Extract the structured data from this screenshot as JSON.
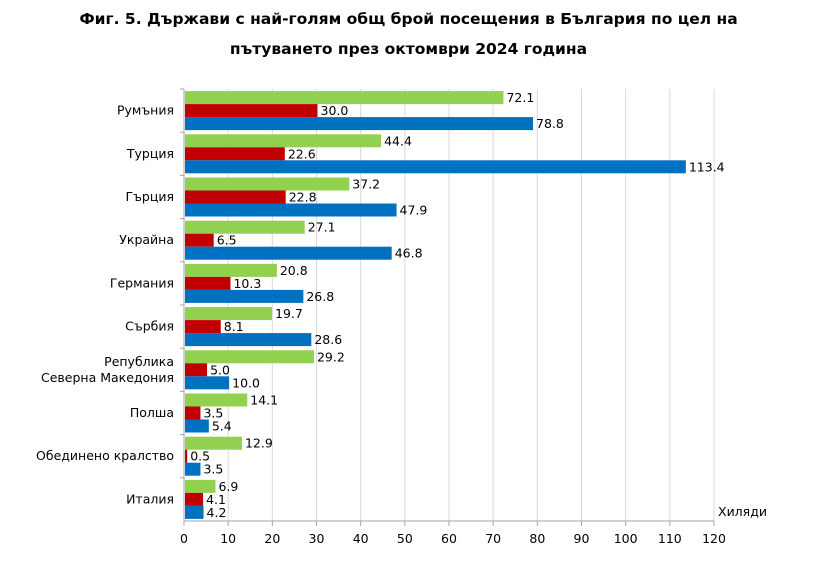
{
  "chart_data": {
    "type": "bar",
    "orientation": "horizontal",
    "title_line1": "Фиг. 5. Държави с най-голям общ брой посещения в България по цел на",
    "title_line2": "пътуването през октомври 2024 година",
    "xlabel": "Хиляди",
    "ylabel": "",
    "xlim": [
      0,
      120
    ],
    "xticks": [
      "0",
      "10",
      "20",
      "30",
      "40",
      "50",
      "60",
      "70",
      "80",
      "90",
      "100",
      "110",
      "120"
    ],
    "grid": true,
    "legend": "none",
    "categories": [
      "Румъния",
      "Турция",
      "Гърция",
      "Украйна",
      "Германия",
      "Сърбия",
      "Република Северна Македония",
      "Полша",
      "Обединено кралство",
      "Италия"
    ],
    "category_lines": [
      [
        "Румъния"
      ],
      [
        "Турция"
      ],
      [
        "Гърция"
      ],
      [
        "Украйна"
      ],
      [
        "Германия"
      ],
      [
        "Сърбия"
      ],
      [
        "Република",
        "Северна Македония"
      ],
      [
        "Полша"
      ],
      [
        "Обединено кралство"
      ],
      [
        "Италия"
      ]
    ],
    "series": [
      {
        "name": "series-green",
        "color": "#92d050",
        "values": [
          72.1,
          44.4,
          37.2,
          27.1,
          20.8,
          19.7,
          29.2,
          14.1,
          12.9,
          6.9
        ],
        "labels": [
          "72.1",
          "44.4",
          "37.2",
          "27.1",
          "20.8",
          "19.7",
          "29.2",
          "14.1",
          "12.9",
          "6.9"
        ]
      },
      {
        "name": "series-red",
        "color": "#c00000",
        "values": [
          30.0,
          22.6,
          22.8,
          6.5,
          10.3,
          8.1,
          5.0,
          3.5,
          0.5,
          4.1
        ],
        "labels": [
          "30.0",
          "22.6",
          "22.8",
          "6.5",
          "10.3",
          "8.1",
          "5.0",
          "3.5",
          "0.5",
          "4.1"
        ]
      },
      {
        "name": "series-blue",
        "color": "#0070c0",
        "values": [
          78.8,
          113.4,
          47.9,
          46.8,
          26.8,
          28.6,
          10.0,
          5.4,
          3.5,
          4.2
        ],
        "labels": [
          "78.8",
          "113.4",
          "47.9",
          "46.8",
          "26.8",
          "28.6",
          "10.0",
          "5.4",
          "3.5",
          "4.2"
        ]
      }
    ]
  }
}
